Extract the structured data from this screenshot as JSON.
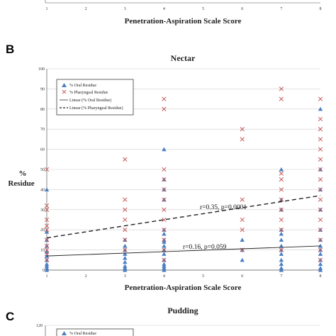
{
  "colors": {
    "oral": "#4a7fc1",
    "pharyngeal": "#c65a5a",
    "grid": "#cfcfcf",
    "axis": "#555555"
  },
  "top_panel": {
    "xlabel": "Penetration-Aspiration Scale Score",
    "x_ticks": [
      "1",
      "2",
      "3",
      "4",
      "5",
      "6",
      "7",
      "8"
    ]
  },
  "panel_b": {
    "letter": "B",
    "ylabel_line1": "%",
    "ylabel_line2": "Residue",
    "annotation_pharyngeal": "r=0.35, p=0.0001",
    "annotation_oral": "r=0.16, p=0.059",
    "legend": [
      "% Oral Residue",
      "% Pharyngeal Residue",
      "Linear (% Oral Residue)",
      "Linear (% Pharyngeal Residue)"
    ]
  },
  "panel_c": {
    "letter": "C",
    "title": "Pudding",
    "y_ticks": [
      "120"
    ],
    "legend": [
      "% Oral Residue"
    ]
  },
  "chart_data": {
    "type": "scatter",
    "title": "Nectar",
    "xlabel": "Penetration-Aspiration Scale Score",
    "ylabel": "% Residue",
    "xlim": [
      1,
      8
    ],
    "ylim": [
      0,
      100
    ],
    "x_ticks": [
      1,
      2,
      3,
      4,
      5,
      6,
      7,
      8
    ],
    "y_ticks": [
      0,
      10,
      20,
      30,
      40,
      50,
      60,
      70,
      80,
      90,
      100
    ],
    "grid": true,
    "legend_position": "top-left",
    "series": [
      {
        "name": "% Oral Residue",
        "marker": "triangle",
        "points": [
          [
            1,
            0
          ],
          [
            1,
            1
          ],
          [
            1,
            2
          ],
          [
            1,
            3
          ],
          [
            1,
            5
          ],
          [
            1,
            7
          ],
          [
            1,
            9
          ],
          [
            1,
            12
          ],
          [
            1,
            15
          ],
          [
            1,
            19
          ],
          [
            1,
            40
          ],
          [
            3,
            0
          ],
          [
            3,
            1
          ],
          [
            3,
            2
          ],
          [
            3,
            4
          ],
          [
            3,
            6
          ],
          [
            3,
            8
          ],
          [
            3,
            10
          ],
          [
            3,
            12
          ],
          [
            3,
            15
          ],
          [
            4,
            0
          ],
          [
            4,
            1
          ],
          [
            4,
            2
          ],
          [
            4,
            3
          ],
          [
            4,
            5
          ],
          [
            4,
            8
          ],
          [
            4,
            10
          ],
          [
            4,
            12
          ],
          [
            4,
            14
          ],
          [
            4,
            15
          ],
          [
            4,
            18
          ],
          [
            4,
            20
          ],
          [
            4,
            35
          ],
          [
            4,
            40
          ],
          [
            4,
            45
          ],
          [
            4,
            60
          ],
          [
            6,
            5
          ],
          [
            6,
            10
          ],
          [
            6,
            15
          ],
          [
            7,
            0
          ],
          [
            7,
            1
          ],
          [
            7,
            3
          ],
          [
            7,
            5
          ],
          [
            7,
            8
          ],
          [
            7,
            10
          ],
          [
            7,
            12
          ],
          [
            7,
            15
          ],
          [
            7,
            18
          ],
          [
            7,
            20
          ],
          [
            7,
            30
          ],
          [
            7,
            35
          ],
          [
            7,
            50
          ],
          [
            8,
            0
          ],
          [
            8,
            1
          ],
          [
            8,
            3
          ],
          [
            8,
            5
          ],
          [
            8,
            8
          ],
          [
            8,
            10
          ],
          [
            8,
            12
          ],
          [
            8,
            15
          ],
          [
            8,
            20
          ],
          [
            8,
            30
          ],
          [
            8,
            40
          ],
          [
            8,
            50
          ],
          [
            8,
            80
          ]
        ]
      },
      {
        "name": "% Pharyngeal Residue",
        "marker": "x",
        "points": [
          [
            1,
            5
          ],
          [
            1,
            8
          ],
          [
            1,
            10
          ],
          [
            1,
            12
          ],
          [
            1,
            15
          ],
          [
            1,
            20
          ],
          [
            1,
            22
          ],
          [
            1,
            25
          ],
          [
            1,
            30
          ],
          [
            1,
            32
          ],
          [
            1,
            50
          ],
          [
            3,
            10
          ],
          [
            3,
            15
          ],
          [
            3,
            20
          ],
          [
            3,
            25
          ],
          [
            3,
            30
          ],
          [
            3,
            35
          ],
          [
            3,
            55
          ],
          [
            4,
            5
          ],
          [
            4,
            10
          ],
          [
            4,
            15
          ],
          [
            4,
            20
          ],
          [
            4,
            25
          ],
          [
            4,
            30
          ],
          [
            4,
            35
          ],
          [
            4,
            40
          ],
          [
            4,
            45
          ],
          [
            4,
            50
          ],
          [
            4,
            80
          ],
          [
            4,
            85
          ],
          [
            6,
            10
          ],
          [
            6,
            20
          ],
          [
            6,
            25
          ],
          [
            6,
            35
          ],
          [
            6,
            65
          ],
          [
            6,
            70
          ],
          [
            7,
            10
          ],
          [
            7,
            20
          ],
          [
            7,
            25
          ],
          [
            7,
            30
          ],
          [
            7,
            35
          ],
          [
            7,
            40
          ],
          [
            7,
            45
          ],
          [
            7,
            48
          ],
          [
            7,
            85
          ],
          [
            7,
            90
          ],
          [
            8,
            5
          ],
          [
            8,
            10
          ],
          [
            8,
            15
          ],
          [
            8,
            20
          ],
          [
            8,
            25
          ],
          [
            8,
            30
          ],
          [
            8,
            35
          ],
          [
            8,
            40
          ],
          [
            8,
            45
          ],
          [
            8,
            50
          ],
          [
            8,
            55
          ],
          [
            8,
            60
          ],
          [
            8,
            65
          ],
          [
            8,
            70
          ],
          [
            8,
            75
          ],
          [
            8,
            85
          ]
        ]
      },
      {
        "name": "Linear (% Oral Residue)",
        "type": "line",
        "style": "solid",
        "points": [
          [
            1,
            7
          ],
          [
            8,
            12
          ]
        ]
      },
      {
        "name": "Linear (% Pharyngeal Residue)",
        "type": "line",
        "style": "dashed",
        "points": [
          [
            1,
            16
          ],
          [
            8,
            37
          ]
        ]
      }
    ]
  }
}
